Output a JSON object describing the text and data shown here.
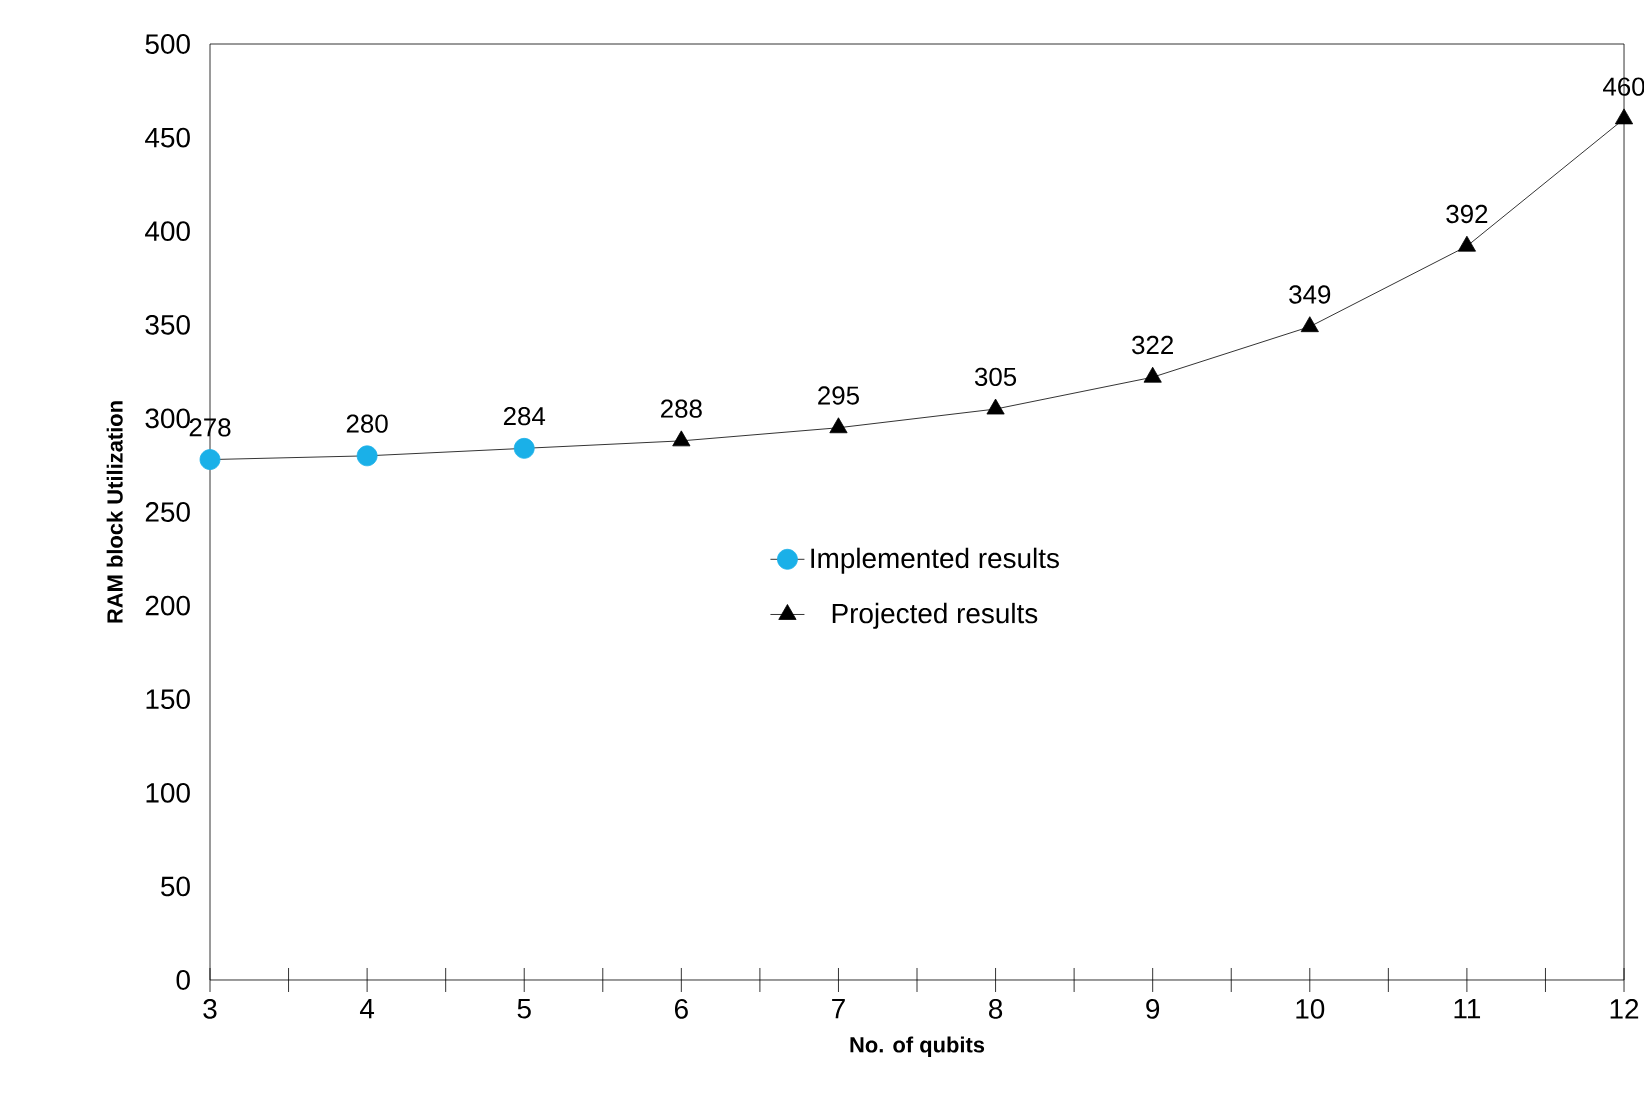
{
  "chart_data": {
    "type": "line",
    "xlabel": "No. of qubits",
    "ylabel": "RAM block  Utilization",
    "xlim": [
      3,
      12
    ],
    "xticks": [
      3,
      4,
      5,
      6,
      7,
      8,
      9,
      10,
      11,
      12
    ],
    "ylim": [
      0,
      500
    ],
    "yticks": [
      0,
      50,
      100,
      150,
      200,
      250,
      300,
      350,
      400,
      450,
      500
    ],
    "grid": false,
    "legend": "center",
    "data_labels": true,
    "line_style": "solid",
    "series": [
      {
        "name": "Implemented results",
        "color": "#1ab0e8",
        "marker": "circle",
        "x": [
          3,
          4,
          5
        ],
        "values": [
          278,
          280,
          284
        ]
      },
      {
        "name": "Projected results",
        "color": "#000000",
        "marker": "triangle",
        "x": [
          6,
          7,
          8,
          9,
          10,
          11,
          12
        ],
        "values": [
          288,
          295,
          305,
          322,
          349,
          392,
          460
        ]
      }
    ]
  }
}
